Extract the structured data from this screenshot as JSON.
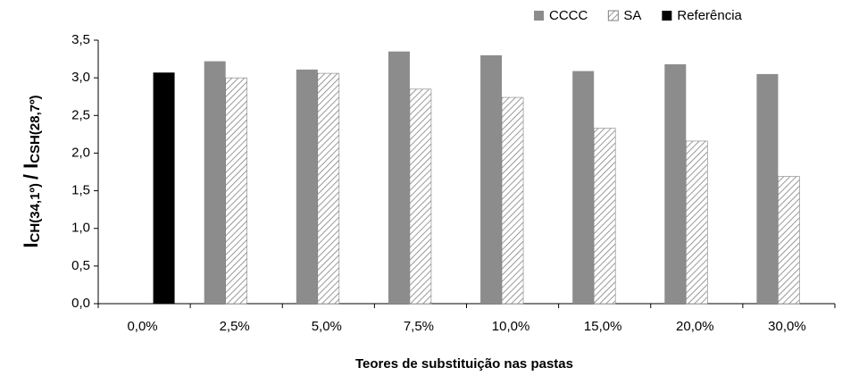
{
  "chart_data": {
    "type": "bar",
    "xlabel": "Teores de substituição nas pastas",
    "ylabel": [
      "I",
      "CH(34,1º)",
      "/ I",
      "CSH(28,7º)"
    ],
    "categories": [
      "0,0%",
      "2,5%",
      "5,0%",
      "7,5%",
      "10,0%",
      "15,0%",
      "20,0%",
      "30,0%"
    ],
    "series": [
      {
        "name": "CCCC",
        "color": "#8c8c8c",
        "values": [
          null,
          3.22,
          3.11,
          3.35,
          3.3,
          3.09,
          3.18,
          3.05
        ]
      },
      {
        "name": "SA",
        "color": "#808080",
        "hatch": true,
        "values": [
          null,
          3.0,
          3.06,
          2.85,
          2.74,
          2.33,
          2.16,
          1.69
        ]
      },
      {
        "name": "Referência",
        "color": "#000000",
        "values": [
          3.07,
          null,
          null,
          null,
          null,
          null,
          null,
          null
        ]
      }
    ],
    "ylim": [
      0,
      3.5
    ],
    "yticks": [
      {
        "value": 0,
        "label": "0,0"
      },
      {
        "value": 0.5,
        "label": "0,5"
      },
      {
        "value": 1,
        "label": "1,0"
      },
      {
        "value": 1.5,
        "label": "1,5"
      },
      {
        "value": 2,
        "label": "2,0"
      },
      {
        "value": 2.5,
        "label": "2,5"
      },
      {
        "value": 3,
        "label": "3,0"
      },
      {
        "value": 3.5,
        "label": "3,5"
      }
    ],
    "grid": false,
    "legend": "top-right"
  }
}
